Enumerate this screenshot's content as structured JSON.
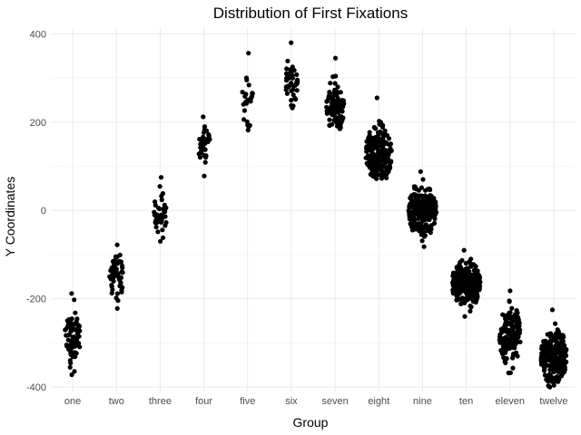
{
  "chart_data": {
    "type": "scatter",
    "title": "Distribution of First Fixations",
    "xlabel": "Group",
    "ylabel": "Y Coordinates",
    "ylim": [
      -410,
      415
    ],
    "y_ticks": [
      -400,
      -200,
      0,
      200,
      400
    ],
    "grid": true,
    "categories": [
      "one",
      "two",
      "three",
      "four",
      "five",
      "six",
      "seven",
      "eight",
      "nine",
      "ten",
      "eleven",
      "twelve"
    ],
    "groups": [
      {
        "name": "one",
        "n": 80,
        "min": -372,
        "max": -188,
        "center": -285
      },
      {
        "name": "two",
        "n": 60,
        "min": -222,
        "max": -78,
        "center": -150
      },
      {
        "name": "three",
        "n": 45,
        "min": -70,
        "max": 75,
        "center": -10
      },
      {
        "name": "four",
        "n": 35,
        "min": 78,
        "max": 212,
        "center": 150
      },
      {
        "name": "five",
        "n": 25,
        "min": 182,
        "max": 356,
        "center": 250
      },
      {
        "name": "six",
        "n": 45,
        "min": 232,
        "max": 380,
        "center": 290
      },
      {
        "name": "seven",
        "n": 110,
        "min": 185,
        "max": 345,
        "center": 235
      },
      {
        "name": "eight",
        "n": 210,
        "min": 72,
        "max": 255,
        "center": 130
      },
      {
        "name": "nine",
        "n": 230,
        "min": -82,
        "max": 88,
        "center": 0
      },
      {
        "name": "ten",
        "n": 240,
        "min": -240,
        "max": -90,
        "center": -165
      },
      {
        "name": "eleven",
        "n": 150,
        "min": -368,
        "max": -182,
        "center": -280
      },
      {
        "name": "twelve",
        "n": 210,
        "min": -400,
        "max": -225,
        "center": -330
      }
    ]
  }
}
